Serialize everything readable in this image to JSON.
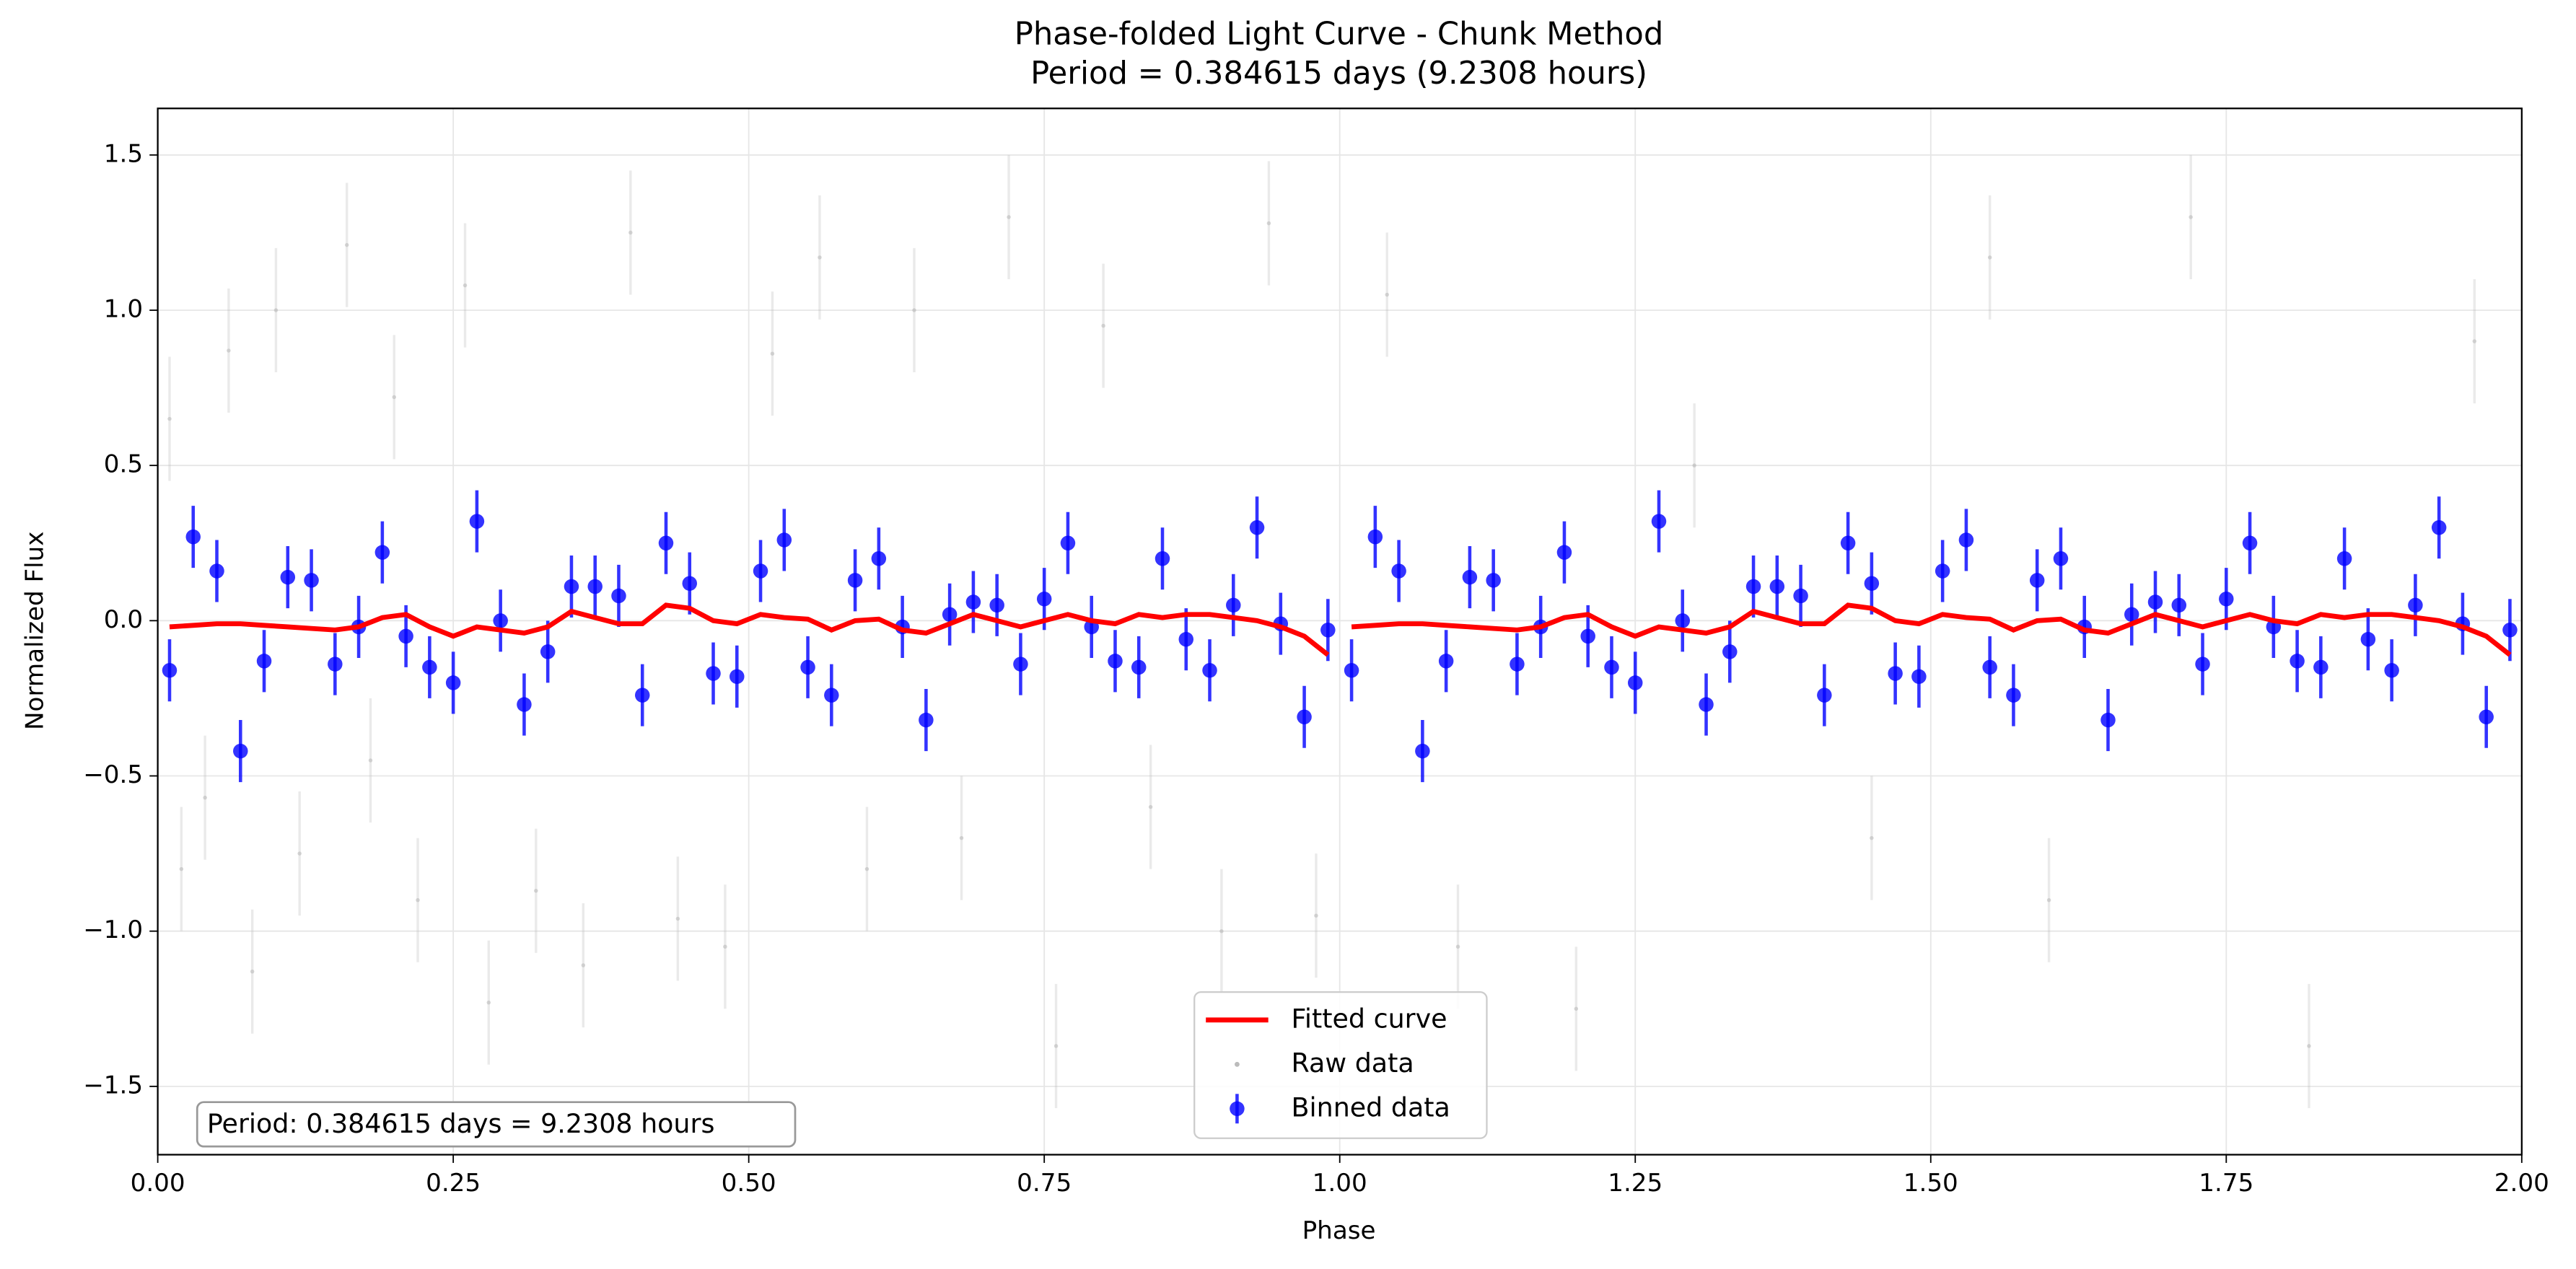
{
  "chart_data": {
    "type": "scatter",
    "title": "Phase-folded Light Curve - Chunk Method",
    "subtitle": "Period = 0.384615 days (9.2308 hours)",
    "x_label": "Phase",
    "y_label": "Normalized Flux",
    "annotation": "Period: 0.384615 days = 9.2308 hours",
    "xlim": [
      0,
      2
    ],
    "ylim": [
      -1.72,
      1.65
    ],
    "xticks": [
      {
        "value": 0,
        "label": "0.00"
      },
      {
        "value": 0.25,
        "label": "0.25"
      },
      {
        "value": 0.5,
        "label": "0.50"
      },
      {
        "value": 0.75,
        "label": "0.75"
      },
      {
        "value": 1,
        "label": "1.00"
      },
      {
        "value": 1.25,
        "label": "1.25"
      },
      {
        "value": 1.5,
        "label": "1.50"
      },
      {
        "value": 1.75,
        "label": "1.75"
      },
      {
        "value": 2,
        "label": "2.00"
      }
    ],
    "yticks": [
      {
        "value": -1.5,
        "label": "−1.5"
      },
      {
        "value": -1,
        "label": "−1.0"
      },
      {
        "value": -0.5,
        "label": "−0.5"
      },
      {
        "value": 0,
        "label": "0.0"
      },
      0.5,
      {
        "value": 1,
        "label": "1.0"
      },
      1.5
    ],
    "grid": true,
    "legend": "lower center",
    "series": [
      {
        "name": "Fitted curve",
        "kind": "line",
        "color": "#ff0000",
        "x": [
          0.01,
          0.03,
          0.05,
          0.07,
          0.09,
          0.11,
          0.13,
          0.15,
          0.17,
          0.19,
          0.21,
          0.23,
          0.25,
          0.27,
          0.29,
          0.31,
          0.33,
          0.35,
          0.37,
          0.39,
          0.41,
          0.43,
          0.45,
          0.47,
          0.49,
          0.51,
          0.53,
          0.55,
          0.57,
          0.59,
          0.61,
          0.63,
          0.65,
          0.67,
          0.69,
          0.71,
          0.73,
          0.75,
          0.77,
          0.79,
          0.81,
          0.83,
          0.85,
          0.87,
          0.89,
          0.91,
          0.93,
          0.95,
          0.97,
          0.99,
          1.0,
          1.01,
          1.03,
          1.05,
          1.07,
          1.09,
          1.11,
          1.13,
          1.15,
          1.17,
          1.19,
          1.21,
          1.23,
          1.25,
          1.27,
          1.29,
          1.31,
          1.33,
          1.35,
          1.37,
          1.39,
          1.41,
          1.43,
          1.45,
          1.47,
          1.49,
          1.51,
          1.53,
          1.55,
          1.57,
          1.59,
          1.61,
          1.63,
          1.65,
          1.67,
          1.69,
          1.71,
          1.73,
          1.75,
          1.77,
          1.79,
          1.81,
          1.83,
          1.85,
          1.87,
          1.89,
          1.91,
          1.93,
          1.95,
          1.97,
          1.99
        ],
        "values": [
          -0.02,
          -0.015,
          -0.01,
          -0.01,
          -0.015,
          -0.02,
          -0.025,
          -0.03,
          -0.02,
          0.01,
          0.02,
          -0.02,
          -0.05,
          -0.02,
          -0.03,
          -0.04,
          -0.02,
          0.03,
          0.01,
          -0.01,
          -0.01,
          0.05,
          0.04,
          0.0,
          -0.01,
          0.02,
          0.01,
          0.005,
          -0.03,
          0.0,
          0.005,
          -0.03,
          -0.04,
          -0.01,
          0.02,
          0.0,
          -0.02,
          0.0,
          0.02,
          0.0,
          -0.01,
          0.02,
          0.01,
          0.02,
          0.02,
          0.01,
          0.0,
          -0.02,
          -0.05,
          -0.11,
          null,
          -0.02,
          -0.015,
          -0.01,
          -0.01,
          -0.015,
          -0.02,
          -0.025,
          -0.03,
          -0.02,
          0.01,
          0.02,
          -0.02,
          -0.05,
          -0.02,
          -0.03,
          -0.04,
          -0.02,
          0.03,
          0.01,
          -0.01,
          -0.01,
          0.05,
          0.04,
          0.0,
          -0.01,
          0.02,
          0.01,
          0.005,
          -0.03,
          0.0,
          0.005,
          -0.03,
          -0.04,
          -0.01,
          0.02,
          0.0,
          -0.02,
          0.0,
          0.02,
          0.0,
          -0.01,
          0.02,
          0.01,
          0.02,
          0.02,
          0.01,
          0.0,
          -0.02,
          -0.05,
          -0.11
        ]
      },
      {
        "name": "Raw data",
        "kind": "raw",
        "color": "#bbbbbb",
        "error": 0.2,
        "x": [
          0.01,
          0.02,
          0.04,
          0.06,
          0.08,
          0.1,
          0.12,
          0.16,
          0.18,
          0.2,
          0.22,
          0.26,
          0.28,
          0.32,
          0.36,
          0.4,
          0.44,
          0.48,
          0.52,
          0.56,
          0.6,
          0.64,
          0.68,
          0.72,
          0.76,
          0.8,
          0.84,
          0.9,
          0.94,
          0.98,
          1.04,
          1.1,
          1.2,
          1.3,
          1.45,
          1.55,
          1.6,
          1.72,
          1.82,
          1.96
        ],
        "values": [
          0.65,
          -0.8,
          -0.57,
          0.87,
          -1.13,
          1.0,
          -0.75,
          1.21,
          -0.45,
          0.72,
          -0.9,
          1.08,
          -1.23,
          -0.87,
          -1.11,
          1.25,
          -0.96,
          -1.05,
          0.86,
          1.17,
          -0.8,
          1.0,
          -0.7,
          1.3,
          -1.37,
          0.95,
          -0.6,
          -1.0,
          1.28,
          -0.95,
          1.05,
          -1.05,
          -1.25,
          0.5,
          -0.7,
          1.17,
          -0.9,
          1.3,
          -1.37,
          0.9
        ]
      },
      {
        "name": "Binned data",
        "kind": "errorbar",
        "color": "#0000ff",
        "error": 0.1,
        "x": [
          0.01,
          0.03,
          0.05,
          0.07,
          0.09,
          0.11,
          0.13,
          0.15,
          0.17,
          0.19,
          0.21,
          0.23,
          0.25,
          0.27,
          0.29,
          0.31,
          0.33,
          0.35,
          0.37,
          0.39,
          0.41,
          0.43,
          0.45,
          0.47,
          0.49,
          0.51,
          0.53,
          0.55,
          0.57,
          0.59,
          0.61,
          0.63,
          0.65,
          0.67,
          0.69,
          0.71,
          0.73,
          0.75,
          0.77,
          0.79,
          0.81,
          0.83,
          0.85,
          0.87,
          0.89,
          0.91,
          0.93,
          0.95,
          0.97,
          0.99,
          1.01,
          1.03,
          1.05,
          1.07,
          1.09,
          1.11,
          1.13,
          1.15,
          1.17,
          1.19,
          1.21,
          1.23,
          1.25,
          1.27,
          1.29,
          1.31,
          1.33,
          1.35,
          1.37,
          1.39,
          1.41,
          1.43,
          1.45,
          1.47,
          1.49,
          1.51,
          1.53,
          1.55,
          1.57,
          1.59,
          1.61,
          1.63,
          1.65,
          1.67,
          1.69,
          1.71,
          1.73,
          1.75,
          1.77,
          1.79,
          1.81,
          1.83,
          1.85,
          1.87,
          1.89,
          1.91,
          1.93,
          1.95,
          1.97,
          1.99
        ],
        "values": [
          -0.16,
          0.27,
          0.16,
          -0.42,
          -0.13,
          0.14,
          0.13,
          -0.14,
          -0.02,
          0.22,
          -0.05,
          -0.15,
          -0.2,
          0.32,
          0.0,
          -0.27,
          -0.1,
          0.11,
          0.11,
          0.08,
          -0.24,
          0.25,
          0.12,
          -0.17,
          -0.18,
          0.16,
          0.26,
          -0.15,
          -0.24,
          0.13,
          0.2,
          -0.02,
          -0.32,
          0.02,
          0.06,
          0.05,
          -0.14,
          0.07,
          0.25,
          -0.02,
          -0.13,
          -0.15,
          0.2,
          -0.06,
          -0.16,
          0.05,
          0.3,
          -0.01,
          -0.31,
          -0.03,
          -0.16,
          0.27,
          0.16,
          -0.42,
          -0.13,
          0.14,
          0.13,
          -0.14,
          -0.02,
          0.22,
          -0.05,
          -0.15,
          -0.2,
          0.32,
          0.0,
          -0.27,
          -0.1,
          0.11,
          0.11,
          0.08,
          -0.24,
          0.25,
          0.12,
          -0.17,
          -0.18,
          0.16,
          0.26,
          -0.15,
          -0.24,
          0.13,
          0.2,
          -0.02,
          -0.32,
          0.02,
          0.06,
          0.05,
          -0.14,
          0.07,
          0.25,
          -0.02,
          -0.13,
          -0.15,
          0.2,
          -0.06,
          -0.16,
          0.05,
          0.3,
          -0.01,
          -0.31,
          -0.03
        ]
      }
    ]
  }
}
